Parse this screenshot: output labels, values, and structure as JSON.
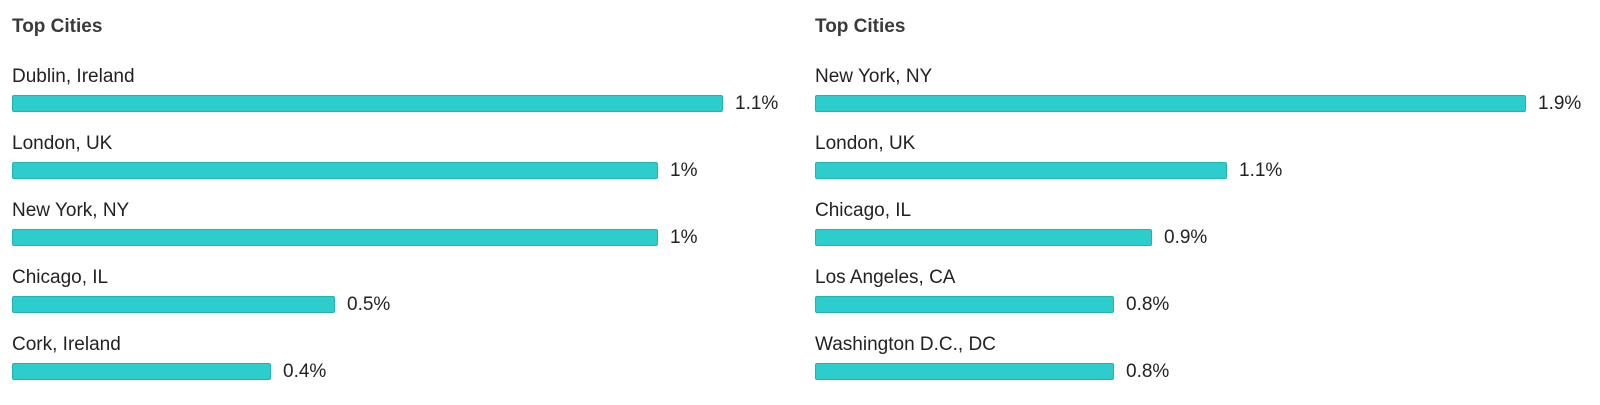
{
  "colors": {
    "bar_fill": "#2ecdcd",
    "bar_border": "#21b3b3"
  },
  "chart_data": [
    {
      "type": "bar",
      "orientation": "horizontal",
      "title": "Top Cities",
      "categories": [
        "Dublin, Ireland",
        "London, UK",
        "New York, NY",
        "Chicago, IL",
        "Cork, Ireland"
      ],
      "values": [
        1.1,
        1.0,
        1.0,
        0.5,
        0.4
      ],
      "value_labels": [
        "1.1%",
        "1%",
        "1%",
        "0.5%",
        "0.4%"
      ],
      "unit": "%",
      "xlim": [
        0,
        1.1
      ],
      "grid": false,
      "legend": "none"
    },
    {
      "type": "bar",
      "orientation": "horizontal",
      "title": "Top Cities",
      "categories": [
        "New York, NY",
        "London, UK",
        "Chicago, IL",
        "Los Angeles, CA",
        "Washington D.C., DC"
      ],
      "values": [
        1.9,
        1.1,
        0.9,
        0.8,
        0.8
      ],
      "value_labels": [
        "1.9%",
        "1.1%",
        "0.9%",
        "0.8%",
        "0.8%"
      ],
      "unit": "%",
      "xlim": [
        0,
        1.9
      ],
      "grid": false,
      "legend": "none"
    }
  ]
}
